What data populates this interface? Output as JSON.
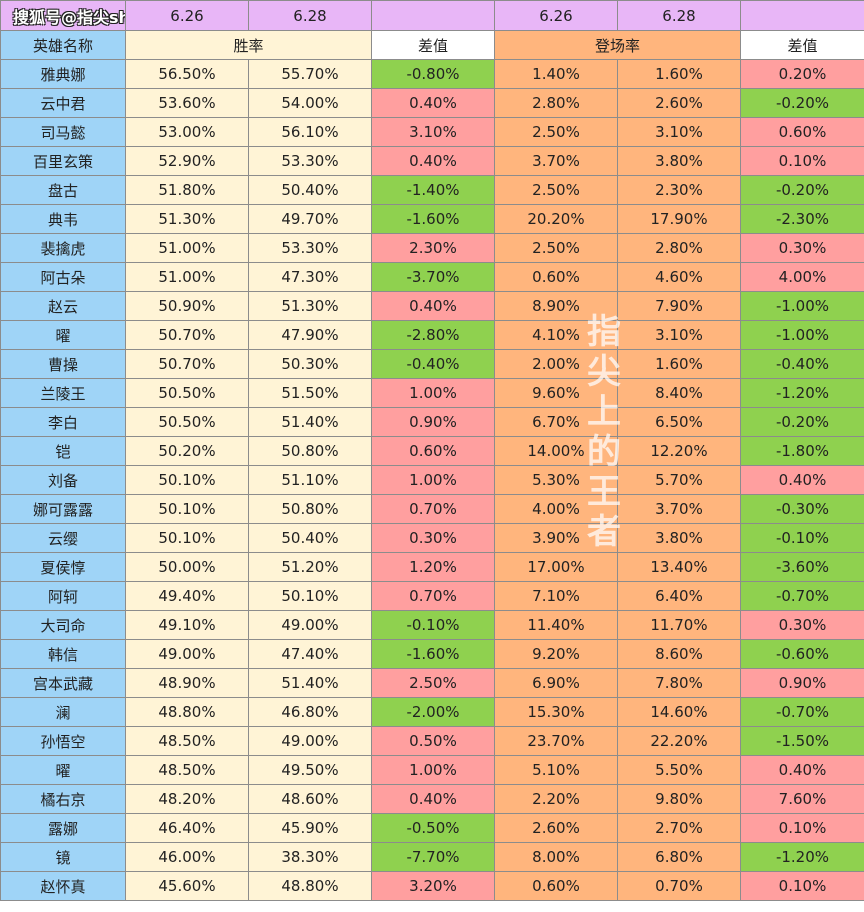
{
  "header": {
    "brand": "搜狐号@指尖show",
    "date_1": "6.26",
    "date_2": "6.28",
    "date_3": "6.26",
    "date_4": "6.28"
  },
  "columns": {
    "hero_name": "英雄名称",
    "win_rate": "胜率",
    "diff_1": "差值",
    "pick_rate": "登场率",
    "diff_2": "差值"
  },
  "watermark": "指尖上的王者",
  "colors": {
    "positive_diff": "#ff9f9f",
    "negative_diff": "#8fd14f",
    "header_purple": "#e8b6f7",
    "header_blue": "#9fd4f7",
    "win_rate_bg": "#fff4d6",
    "pick_rate_bg": "#ffb57d"
  },
  "rows": [
    {
      "name": "雅典娜",
      "win_626": "56.50%",
      "win_628": "55.70%",
      "win_diff": "-0.80%",
      "pick_626": "1.40%",
      "pick_628": "1.60%",
      "pick_diff": "0.20%"
    },
    {
      "name": "云中君",
      "win_626": "53.60%",
      "win_628": "54.00%",
      "win_diff": "0.40%",
      "pick_626": "2.80%",
      "pick_628": "2.60%",
      "pick_diff": "-0.20%"
    },
    {
      "name": "司马懿",
      "win_626": "53.00%",
      "win_628": "56.10%",
      "win_diff": "3.10%",
      "pick_626": "2.50%",
      "pick_628": "3.10%",
      "pick_diff": "0.60%"
    },
    {
      "name": "百里玄策",
      "win_626": "52.90%",
      "win_628": "53.30%",
      "win_diff": "0.40%",
      "pick_626": "3.70%",
      "pick_628": "3.80%",
      "pick_diff": "0.10%"
    },
    {
      "name": "盘古",
      "win_626": "51.80%",
      "win_628": "50.40%",
      "win_diff": "-1.40%",
      "pick_626": "2.50%",
      "pick_628": "2.30%",
      "pick_diff": "-0.20%"
    },
    {
      "name": "典韦",
      "win_626": "51.30%",
      "win_628": "49.70%",
      "win_diff": "-1.60%",
      "pick_626": "20.20%",
      "pick_628": "17.90%",
      "pick_diff": "-2.30%"
    },
    {
      "name": "裴擒虎",
      "win_626": "51.00%",
      "win_628": "53.30%",
      "win_diff": "2.30%",
      "pick_626": "2.50%",
      "pick_628": "2.80%",
      "pick_diff": "0.30%"
    },
    {
      "name": "阿古朵",
      "win_626": "51.00%",
      "win_628": "47.30%",
      "win_diff": "-3.70%",
      "pick_626": "0.60%",
      "pick_628": "4.60%",
      "pick_diff": "4.00%"
    },
    {
      "name": "赵云",
      "win_626": "50.90%",
      "win_628": "51.30%",
      "win_diff": "0.40%",
      "pick_626": "8.90%",
      "pick_628": "7.90%",
      "pick_diff": "-1.00%"
    },
    {
      "name": "曜",
      "win_626": "50.70%",
      "win_628": "47.90%",
      "win_diff": "-2.80%",
      "pick_626": "4.10%",
      "pick_628": "3.10%",
      "pick_diff": "-1.00%"
    },
    {
      "name": "曹操",
      "win_626": "50.70%",
      "win_628": "50.30%",
      "win_diff": "-0.40%",
      "pick_626": "2.00%",
      "pick_628": "1.60%",
      "pick_diff": "-0.40%"
    },
    {
      "name": "兰陵王",
      "win_626": "50.50%",
      "win_628": "51.50%",
      "win_diff": "1.00%",
      "pick_626": "9.60%",
      "pick_628": "8.40%",
      "pick_diff": "-1.20%"
    },
    {
      "name": "李白",
      "win_626": "50.50%",
      "win_628": "51.40%",
      "win_diff": "0.90%",
      "pick_626": "6.70%",
      "pick_628": "6.50%",
      "pick_diff": "-0.20%"
    },
    {
      "name": "铠",
      "win_626": "50.20%",
      "win_628": "50.80%",
      "win_diff": "0.60%",
      "pick_626": "14.00%",
      "pick_628": "12.20%",
      "pick_diff": "-1.80%"
    },
    {
      "name": "刘备",
      "win_626": "50.10%",
      "win_628": "51.10%",
      "win_diff": "1.00%",
      "pick_626": "5.30%",
      "pick_628": "5.70%",
      "pick_diff": "0.40%"
    },
    {
      "name": "娜可露露",
      "win_626": "50.10%",
      "win_628": "50.80%",
      "win_diff": "0.70%",
      "pick_626": "4.00%",
      "pick_628": "3.70%",
      "pick_diff": "-0.30%"
    },
    {
      "name": "云缨",
      "win_626": "50.10%",
      "win_628": "50.40%",
      "win_diff": "0.30%",
      "pick_626": "3.90%",
      "pick_628": "3.80%",
      "pick_diff": "-0.10%"
    },
    {
      "name": "夏侯惇",
      "win_626": "50.00%",
      "win_628": "51.20%",
      "win_diff": "1.20%",
      "pick_626": "17.00%",
      "pick_628": "13.40%",
      "pick_diff": "-3.60%"
    },
    {
      "name": "阿轲",
      "win_626": "49.40%",
      "win_628": "50.10%",
      "win_diff": "0.70%",
      "pick_626": "7.10%",
      "pick_628": "6.40%",
      "pick_diff": "-0.70%"
    },
    {
      "name": "大司命",
      "win_626": "49.10%",
      "win_628": "49.00%",
      "win_diff": "-0.10%",
      "pick_626": "11.40%",
      "pick_628": "11.70%",
      "pick_diff": "0.30%"
    },
    {
      "name": "韩信",
      "win_626": "49.00%",
      "win_628": "47.40%",
      "win_diff": "-1.60%",
      "pick_626": "9.20%",
      "pick_628": "8.60%",
      "pick_diff": "-0.60%"
    },
    {
      "name": "宫本武藏",
      "win_626": "48.90%",
      "win_628": "51.40%",
      "win_diff": "2.50%",
      "pick_626": "6.90%",
      "pick_628": "7.80%",
      "pick_diff": "0.90%"
    },
    {
      "name": "澜",
      "win_626": "48.80%",
      "win_628": "46.80%",
      "win_diff": "-2.00%",
      "pick_626": "15.30%",
      "pick_628": "14.60%",
      "pick_diff": "-0.70%"
    },
    {
      "name": "孙悟空",
      "win_626": "48.50%",
      "win_628": "49.00%",
      "win_diff": "0.50%",
      "pick_626": "23.70%",
      "pick_628": "22.20%",
      "pick_diff": "-1.50%"
    },
    {
      "name": "曜",
      "win_626": "48.50%",
      "win_628": "49.50%",
      "win_diff": "1.00%",
      "pick_626": "5.10%",
      "pick_628": "5.50%",
      "pick_diff": "0.40%"
    },
    {
      "name": "橘右京",
      "win_626": "48.20%",
      "win_628": "48.60%",
      "win_diff": "0.40%",
      "pick_626": "2.20%",
      "pick_628": "9.80%",
      "pick_diff": "7.60%"
    },
    {
      "name": "露娜",
      "win_626": "46.40%",
      "win_628": "45.90%",
      "win_diff": "-0.50%",
      "pick_626": "2.60%",
      "pick_628": "2.70%",
      "pick_diff": "0.10%"
    },
    {
      "name": "镜",
      "win_626": "46.00%",
      "win_628": "38.30%",
      "win_diff": "-7.70%",
      "pick_626": "8.00%",
      "pick_628": "6.80%",
      "pick_diff": "-1.20%"
    },
    {
      "name": "赵怀真",
      "win_626": "45.60%",
      "win_628": "48.80%",
      "win_diff": "3.20%",
      "pick_626": "0.60%",
      "pick_628": "0.70%",
      "pick_diff": "0.10%"
    }
  ]
}
